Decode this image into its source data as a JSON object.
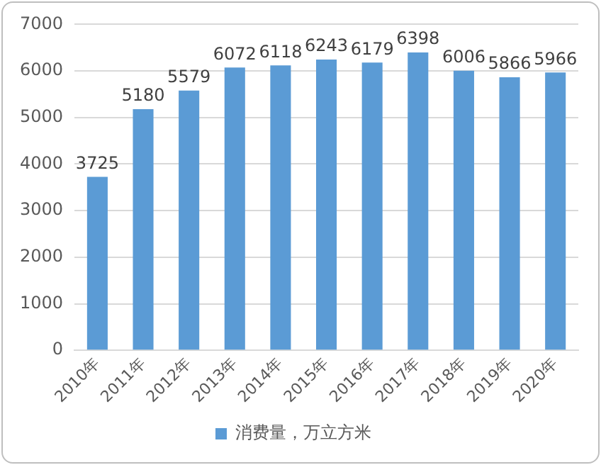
{
  "chart_data": {
    "type": "bar",
    "categories": [
      "2010年",
      "2011年",
      "2012年",
      "2013年",
      "2014年",
      "2015年",
      "2016年",
      "2017年",
      "2018年",
      "2019年",
      "2020年"
    ],
    "series": [
      {
        "name": "消费量，万立方米",
        "color": "#5b9bd5",
        "values": [
          3725,
          5180,
          5579,
          6072,
          6118,
          6243,
          6179,
          6398,
          6006,
          5866,
          5966
        ]
      }
    ],
    "ylim": [
      0,
      7000
    ],
    "yticks": [
      0,
      1000,
      2000,
      3000,
      4000,
      5000,
      6000,
      7000
    ],
    "grid": "y",
    "legend": "bottom",
    "data_labels": true
  }
}
